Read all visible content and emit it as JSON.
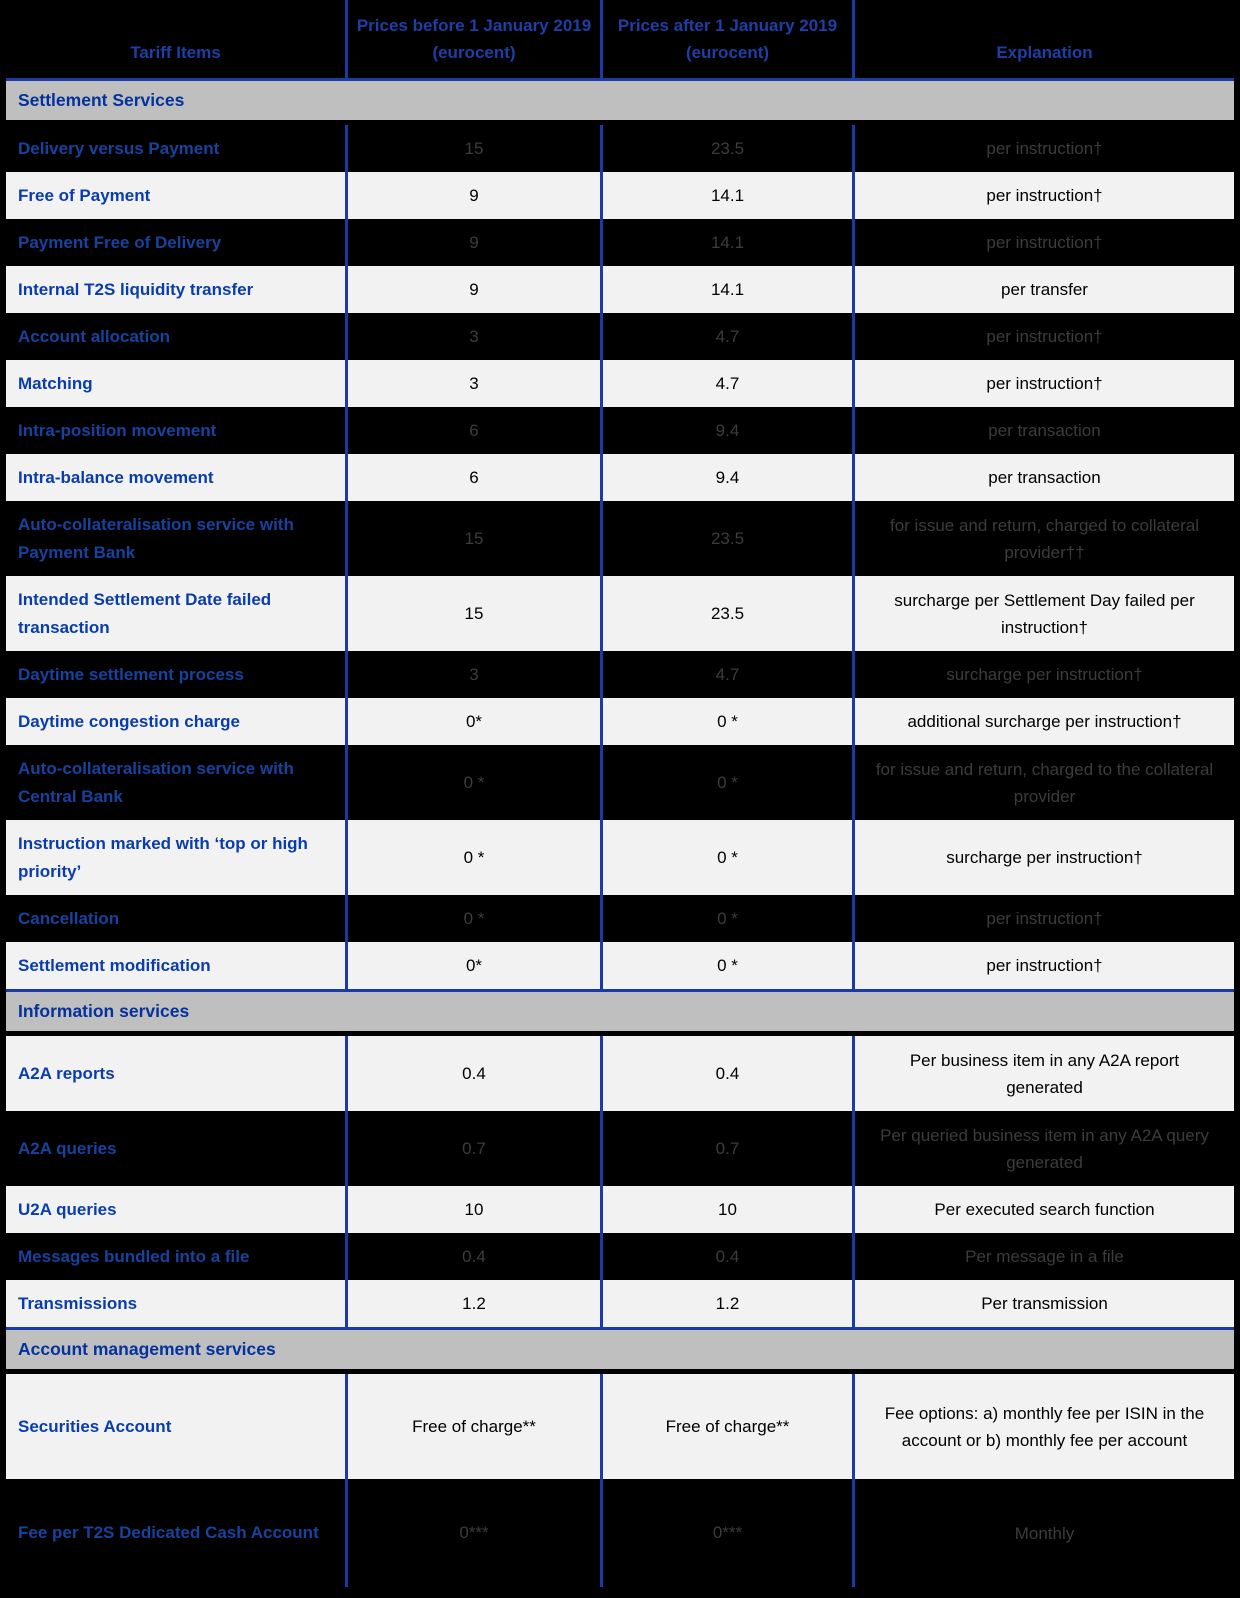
{
  "title": "T2S tariff price list table",
  "colors": {
    "line_blue": "#1a3aa6",
    "header_text_blue": "#1d3fa6",
    "section_text_blue": "#03329c",
    "light_row_item_blue": "#0a3dac",
    "dark_row_item_blue": "#17429e",
    "dark_row_value_gray": "#3c3c3c",
    "section_bg_gray": "#bfbfbf",
    "light_row_bg": "#f2f2f2",
    "dark_row_bg": "#000000"
  },
  "header": {
    "columns": [
      "Tariff Items",
      "Prices before 1 January 2019 (eurocent)",
      "Prices after 1 January 2019 (eurocent)",
      "Explanation"
    ]
  },
  "sections": [
    {
      "title": "Settlement Services"
    },
    {
      "title": "Information services"
    },
    {
      "title": "Account management services"
    }
  ],
  "rows": [
    {
      "item": "Delivery versus Payment",
      "before": "15",
      "after": "23.5",
      "explanation": "per instruction†",
      "highlight": true
    },
    {
      "item": "Free of Payment",
      "before": "9",
      "after": "14.1",
      "explanation": "per instruction†",
      "highlight": false
    },
    {
      "item": "Payment Free of Delivery",
      "before": "9",
      "after": "14.1",
      "explanation": "per instruction†",
      "highlight": true
    },
    {
      "item": "Internal T2S liquidity transfer",
      "before": "9",
      "after": "14.1",
      "explanation": "per transfer",
      "highlight": false
    },
    {
      "item": "Account allocation",
      "before": "3",
      "after": "4.7",
      "explanation": "per instruction†",
      "highlight": true
    },
    {
      "item": "Matching",
      "before": "3",
      "after": "4.7",
      "explanation": "per instruction†",
      "highlight": false
    },
    {
      "item": "Intra-position movement",
      "before": "6",
      "after": "9.4",
      "explanation": "per transaction",
      "highlight": true
    },
    {
      "item": "Intra-balance movement",
      "before": "6",
      "after": "9.4",
      "explanation": "per transaction",
      "highlight": false
    },
    {
      "item": "Auto-collateralisation service with Payment Bank",
      "before": "15",
      "after": "23.5",
      "explanation": "for issue and return, charged to collateral provider††",
      "highlight": true
    },
    {
      "item": "Intended Settlement Date failed transaction",
      "before": "15",
      "after": "23.5",
      "explanation": "surcharge per Settlement Day failed per instruction†",
      "highlight": false
    },
    {
      "item": "Daytime settlement process",
      "before": "3",
      "after": "4.7",
      "explanation": "surcharge per instruction†",
      "highlight": true
    },
    {
      "item": "Daytime congestion charge",
      "before": "0*",
      "after": "0 *",
      "explanation": "additional surcharge per instruction†",
      "highlight": false
    },
    {
      "item": "Auto-collateralisation service with Central Bank",
      "before": "0 *",
      "after": "0 *",
      "explanation": "for issue and return, charged to the collateral provider",
      "highlight": true
    },
    {
      "item": "Instruction marked with ‘top or high priority’",
      "before": "0 *",
      "after": "0 *",
      "explanation": "surcharge per instruction†",
      "highlight": false
    },
    {
      "item": "Cancellation",
      "before": "0 *",
      "after": "0 *",
      "explanation": "per instruction†",
      "highlight": true
    },
    {
      "item": "Settlement modification",
      "before": "0*",
      "after": "0 *",
      "explanation": "per instruction†",
      "highlight": false
    },
    {
      "item": "A2A reports",
      "before": "0.4",
      "after": "0.4",
      "explanation": "Per business item in any A2A report generated",
      "highlight": false
    },
    {
      "item": "A2A queries",
      "before": "0.7",
      "after": "0.7",
      "explanation": "Per queried business item in any A2A query generated",
      "highlight": true
    },
    {
      "item": "U2A queries",
      "before": "10",
      "after": "10",
      "explanation": "Per executed search function",
      "highlight": false
    },
    {
      "item": "Messages bundled into a file",
      "before": "0.4",
      "after": "0.4",
      "explanation": "Per message in a file",
      "highlight": true
    },
    {
      "item": "Transmissions",
      "before": "1.2",
      "after": "1.2",
      "explanation": "Per transmission",
      "highlight": false
    },
    {
      "item": "Securities Account",
      "before": "Free of charge**",
      "after": "Free of charge**",
      "explanation": "Fee options: a) monthly fee per ISIN in the account or  b) monthly fee per account",
      "highlight": false
    },
    {
      "item": "Fee per T2S Dedicated Cash Account",
      "before": "0***",
      "after": "0***",
      "explanation": "Monthly",
      "highlight": true
    }
  ]
}
